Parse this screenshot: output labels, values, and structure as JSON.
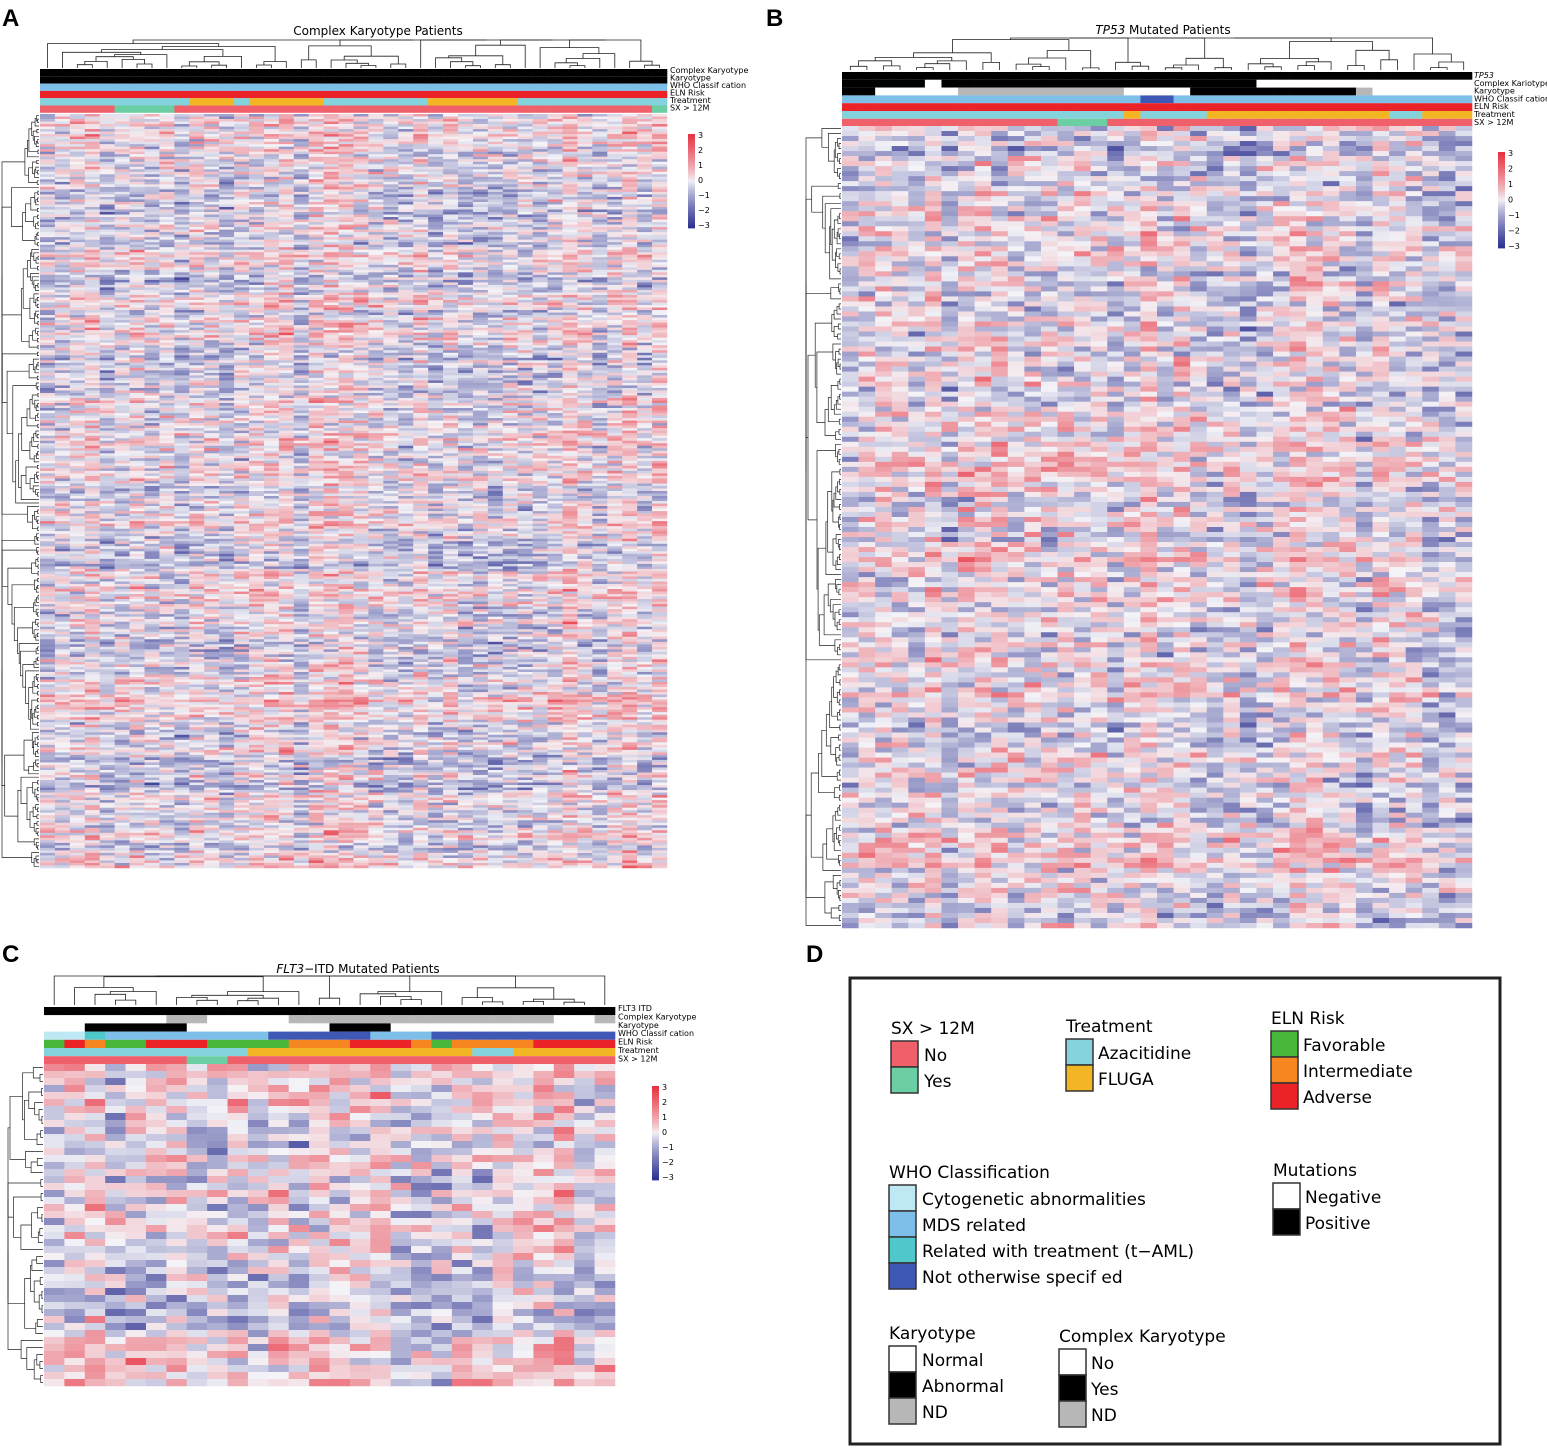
{
  "panel_labels": [
    "A",
    "B",
    "C",
    "D"
  ],
  "colors": {
    "sx_no": "#f0606a",
    "sx_yes": "#6ccfa4",
    "azacitidine": "#84d3dc",
    "fluga": "#f2b625",
    "favorable": "#48b83a",
    "intermediate": "#f6861f",
    "adverse": "#ec2229",
    "cytogenetic": "#bfe8f5",
    "mds_related": "#7dbfe8",
    "related_treatment": "#4fc8cc",
    "not_otherwise": "#4058b5",
    "white": "#ffffff",
    "black": "#000000",
    "nd": "#b7b7b7",
    "heat_low": "#2b2f8f",
    "heat_mid": "#f4f4f8",
    "heat_high": "#e8303e"
  },
  "chart_data": [
    {
      "id": "A",
      "type": "heatmap",
      "title": "Complex Karyotype Patients",
      "annotation_tracks": [
        "Complex Karyotype",
        "Karyotype",
        "WHO Classif cation",
        "ELN Risk",
        "Treatment",
        "SX > 12M"
      ],
      "color_scale": {
        "min": -3,
        "max": 3,
        "ticks": [
          "3",
          "2",
          "1",
          "0",
          "−1",
          "−2",
          "−3"
        ]
      },
      "n_columns": 42,
      "n_rows": 760,
      "values_note": "row-scaled expression z-scores, individual cell values not legible"
    },
    {
      "id": "B",
      "type": "heatmap",
      "title_italic": "TP53",
      "title_rest": " Mutated Patients",
      "annotation_tracks": [
        "TP53",
        "Complex Kariotype",
        "Karyotype",
        "WHO Classif cation",
        "ELN Risk",
        "Treatment",
        "SX > 12M"
      ],
      "color_scale": {
        "min": -3,
        "max": 3,
        "ticks": [
          "3",
          "2",
          "1",
          "0",
          "−1",
          "−2",
          "−3"
        ]
      },
      "n_columns": 38,
      "n_rows": 160,
      "values_note": "row-scaled expression z-scores, individual cell values not legible"
    },
    {
      "id": "C",
      "type": "heatmap",
      "title_italic": "FLT3",
      "title_rest": "−ITD Mutated Patients",
      "annotation_tracks_italic": "FLT3",
      "annotation_tracks": [
        "FLT3 ITD",
        "Complex Karyotype",
        "Karyotype",
        "WHO Classif cation",
        "ELN Risk",
        "Treatment",
        "SX > 12M"
      ],
      "color_scale": {
        "min": -3,
        "max": 3,
        "ticks": [
          "3",
          "2",
          "1",
          "0",
          "−1",
          "−2",
          "−3"
        ]
      },
      "n_columns": 28,
      "n_rows": 46,
      "values_note": "row-scaled expression z-scores, individual cell values not legible"
    }
  ],
  "legend": {
    "sx": {
      "title": "SX > 12M",
      "items": [
        "No",
        "Yes"
      ]
    },
    "treatment": {
      "title": "Treatment",
      "items": [
        "Azacitidine",
        "FLUGA"
      ]
    },
    "eln": {
      "title": "ELN Risk",
      "items": [
        "Favorable",
        "Intermediate",
        "Adverse"
      ]
    },
    "who": {
      "title": "WHO Classification",
      "items": [
        "Cytogenetic abnormalities",
        "MDS related",
        "Related with treatment (t−AML)",
        "Not otherwise specif ed"
      ]
    },
    "mutations": {
      "title": "Mutations",
      "items": [
        "Negative",
        "Positive"
      ]
    },
    "karyotype": {
      "title": "Karyotype",
      "items": [
        "Normal",
        "Abnormal",
        "ND"
      ]
    },
    "complex": {
      "title": "Complex Karyotype",
      "items": [
        "No",
        "Yes",
        "ND"
      ]
    }
  }
}
